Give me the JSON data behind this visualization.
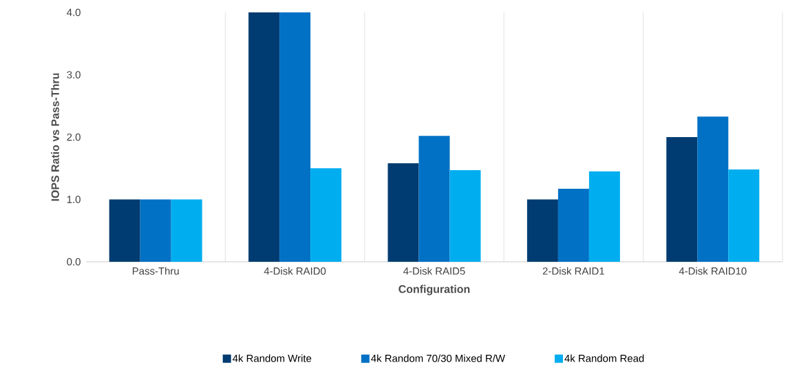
{
  "chart_data": {
    "type": "bar",
    "xlabel": "Configuration",
    "ylabel": "IOPS Ratio vs Pass-Thru",
    "categories": [
      "Pass-Thru",
      "4-Disk RAID0",
      "4-Disk RAID5",
      "2-Disk RAID1",
      "4-Disk RAID10"
    ],
    "series": [
      {
        "name": "4k Random Write",
        "color": "#003c71",
        "values": [
          1.0,
          4.0,
          1.58,
          1.0,
          2.0
        ]
      },
      {
        "name": "4k Random 70/30 Mixed R/W",
        "color": "#0071c5",
        "values": [
          1.0,
          4.0,
          2.02,
          1.17,
          2.33
        ]
      },
      {
        "name": "4k Random Read",
        "color": "#00aeef",
        "values": [
          1.0,
          1.5,
          1.47,
          1.45,
          1.48
        ]
      }
    ],
    "ylim": [
      0,
      4
    ],
    "yticks": [
      {
        "value": 0,
        "label": "0.0"
      },
      {
        "value": 1,
        "label": "1.0"
      },
      {
        "value": 2,
        "label": "2.0"
      },
      {
        "value": 3,
        "label": "3.0"
      },
      {
        "value": 4,
        "label": "4.0"
      }
    ],
    "grid": "x",
    "legend": "bottom"
  }
}
